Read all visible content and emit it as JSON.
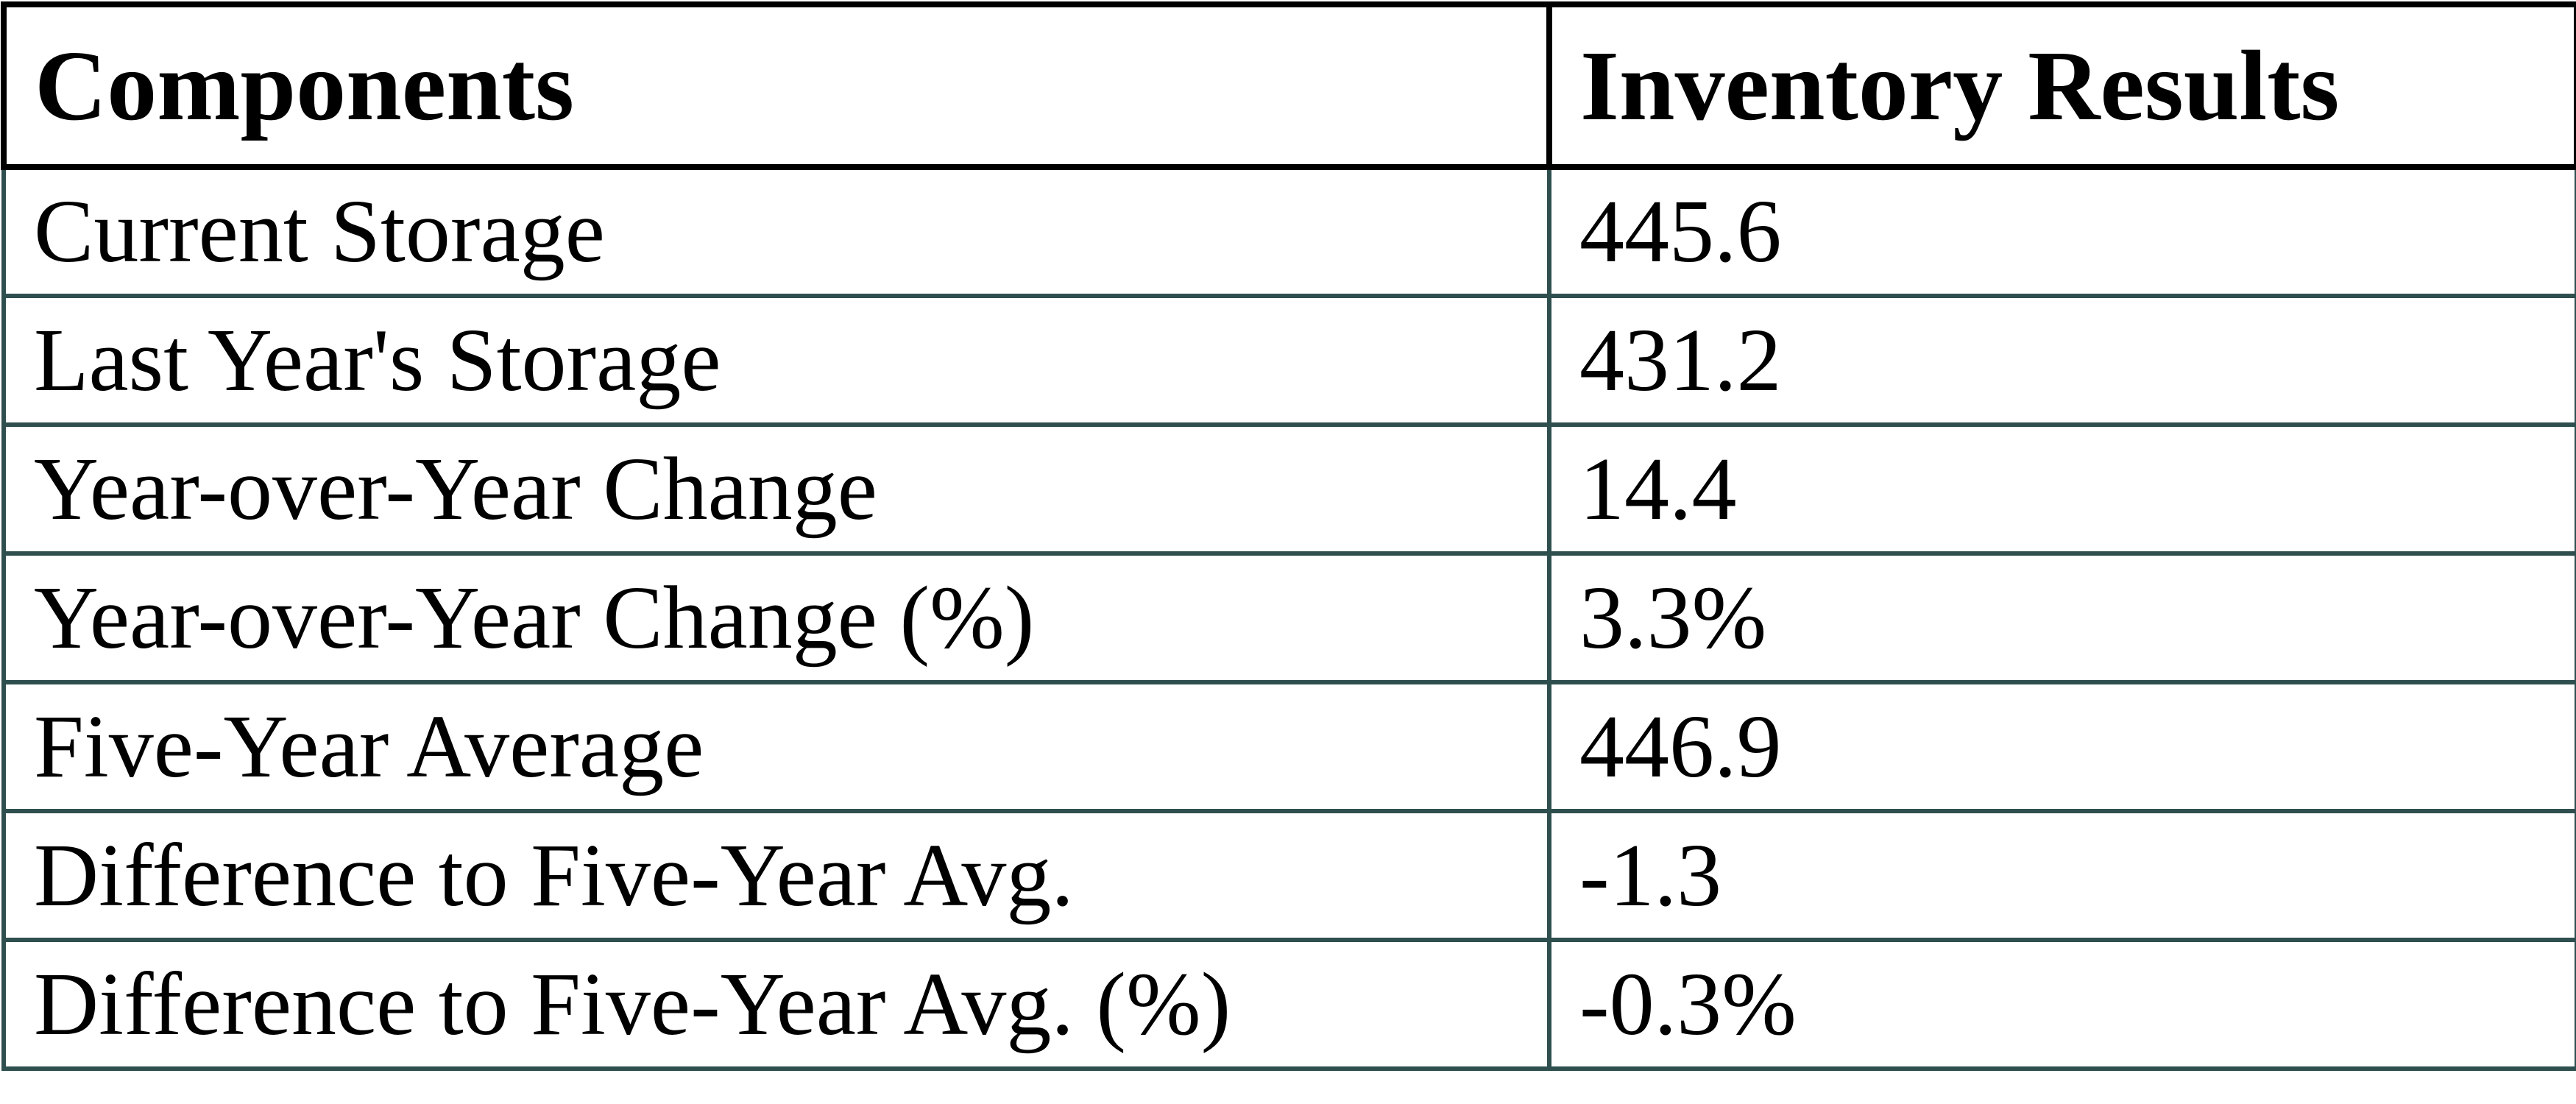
{
  "table": {
    "column_headers": [
      "Components",
      "Inventory Results"
    ],
    "rows": [
      {
        "component": "Current Storage",
        "result": "445.6"
      },
      {
        "component": "Last Year's Storage",
        "result": "431.2"
      },
      {
        "component": "Year-over-Year Change",
        "result": "14.4"
      },
      {
        "component": "Year-over-Year Change (%)",
        "result": "3.3%"
      },
      {
        "component": "Five-Year Average",
        "result": "446.9"
      },
      {
        "component": "Difference to Five-Year Avg.",
        "result": "-1.3"
      },
      {
        "component": "Difference to Five-Year Avg. (%)",
        "result": "-0.3%"
      }
    ]
  },
  "colors": {
    "header_border": "#000000",
    "body_border": "#2F4F4F",
    "text": "#000000",
    "background": "#FFFFFF"
  },
  "chart_data": {
    "type": "table",
    "title": "",
    "columns": [
      "Components",
      "Inventory Results"
    ],
    "rows": [
      [
        "Current Storage",
        445.6
      ],
      [
        "Last Year's Storage",
        431.2
      ],
      [
        "Year-over-Year Change",
        14.4
      ],
      [
        "Year-over-Year Change (%)",
        "3.3%"
      ],
      [
        "Five-Year Average",
        446.9
      ],
      [
        "Difference to Five-Year Avg.",
        -1.3
      ],
      [
        "Difference to Five-Year Avg. (%)",
        "-0.3%"
      ]
    ],
    "layout": {
      "header_bold": true,
      "grid": true,
      "text_align": "left"
    }
  }
}
